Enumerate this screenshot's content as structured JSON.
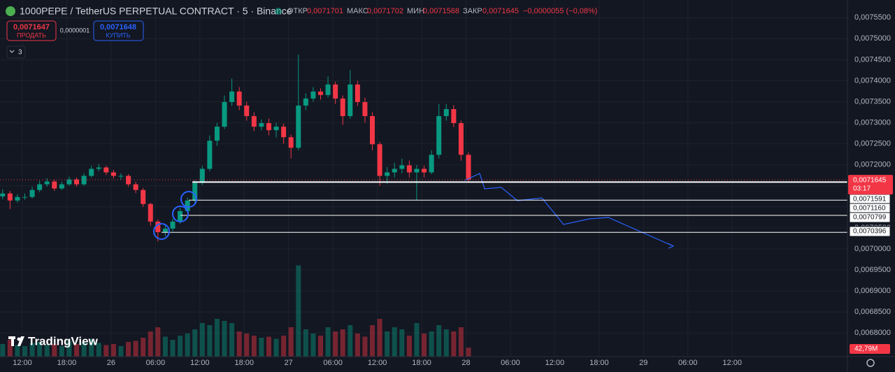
{
  "header": {
    "title": "1000PEPE / TetherUS PERPETUAL CONTRACT · 5 · Binance",
    "open_label": "ОТКР",
    "open": "0,0071701",
    "high_label": "МАКС",
    "high": "0,0071702",
    "low_label": "МИН",
    "low": "0,0071568",
    "close_label": "ЗАКР",
    "close": "0,0071645",
    "change": "−0,0000055 (−0,08%)",
    "sell_price": "0,0071647",
    "sell_label": "ПРОДАТЬ",
    "spread": "0,0000001",
    "buy_price": "0,0071648",
    "buy_label": "КУПИТЬ",
    "indicators_count": "3",
    "logo": "TradingView"
  },
  "chart_data": {
    "type": "candlestick",
    "ylim": [
      0.006744,
      0.007592
    ],
    "yticks": [
      {
        "value": 0.00755,
        "label": "0,0075500"
      },
      {
        "value": 0.0075,
        "label": "0,0075000"
      },
      {
        "value": 0.00745,
        "label": "0,0074500"
      },
      {
        "value": 0.0074,
        "label": "0,0074000"
      },
      {
        "value": 0.00735,
        "label": "0,0073500"
      },
      {
        "value": 0.0073,
        "label": "0,0073000"
      },
      {
        "value": 0.00725,
        "label": "0,0072500"
      },
      {
        "value": 0.0072,
        "label": "0,0072000"
      },
      {
        "value": 0.00715,
        "label": "0,0071500"
      },
      {
        "value": 0.0071,
        "label": "0,0071000"
      },
      {
        "value": 0.00705,
        "label": "0,0070500"
      },
      {
        "value": 0.007,
        "label": "0,0070000"
      },
      {
        "value": 0.00695,
        "label": "0,0069500"
      },
      {
        "value": 0.0069,
        "label": "0,0069000"
      },
      {
        "value": 0.00685,
        "label": "0,0068500"
      },
      {
        "value": 0.0068,
        "label": "0,0068000"
      }
    ],
    "x_axis_labels": [
      "12:00",
      "18:00",
      "26",
      "06:00",
      "12:00",
      "18:00",
      "27",
      "06:00",
      "12:00",
      "18:00",
      "28",
      "06:00",
      "12:00",
      "18:00",
      "29",
      "06:00",
      "12:00"
    ],
    "up_color": "#089981",
    "down_color": "#f23645",
    "open": [
      0.007125,
      0.0071319,
      0.0071152,
      0.0071236,
      0.0071236,
      0.0071403,
      0.0071537,
      0.0071604,
      0.0071437,
      0.0071537,
      0.0071654,
      0.0071537,
      0.0071738,
      0.0071905,
      0.0071938,
      0.0071821,
      0.0071738,
      0.0071738,
      0.0071537,
      0.0071403,
      0.0071069,
      0.0070651,
      0.00704,
      0.0070483,
      0.0070651,
      0.0070901,
      0.0071152,
      0.007157,
      0.0071905,
      0.0072574,
      0.0072908,
      0.0073493,
      0.0073744,
      0.007341,
      0.0073159,
      0.0072908,
      0.0072992,
      0.0072824,
      0.0072908,
      0.0072657,
      0.0072406,
      0.007341,
      0.0073577,
      0.0073744,
      0.0073661,
      0.0073911,
      0.0073577,
      0.0073159,
      0.0073911,
      0.0073493,
      0.0073159,
      0.007249,
      0.0071738,
      0.0071821,
      0.0071905,
      0.0071988,
      0.0071821,
      0.0071905,
      0.0071821,
      0.0072239,
      0.0073159,
      0.0073326,
      0.0072992,
      0.0072239
    ],
    "high": [
      0.007142,
      0.007138,
      0.00713,
      0.007132,
      0.007148,
      0.007162,
      0.007168,
      0.007165,
      0.00716,
      0.007172,
      0.00717,
      0.00718,
      0.007198,
      0.007202,
      0.007198,
      0.007188,
      0.00718,
      0.007178,
      0.00716,
      0.007145,
      0.00711,
      0.00707,
      0.007056,
      0.007072,
      0.007098,
      0.007122,
      0.007164,
      0.007198,
      0.00727,
      0.0073,
      0.007365,
      0.007405,
      0.007385,
      0.00735,
      0.007325,
      0.007308,
      0.00731,
      0.0073,
      0.007298,
      0.007272,
      0.007462,
      0.00737,
      0.007385,
      0.007382,
      0.00741,
      0.007398,
      0.007365,
      0.007425,
      0.0074,
      0.00736,
      0.007325,
      0.007255,
      0.007195,
      0.007205,
      0.007215,
      0.00721,
      0.0072,
      0.007198,
      0.007235,
      0.007345,
      0.007345,
      0.007342,
      0.007305,
      0.00723
    ],
    "low": [
      0.007118,
      0.007095,
      0.00711,
      0.007117,
      0.00712,
      0.007135,
      0.007148,
      0.007138,
      0.00714,
      0.00715,
      0.007148,
      0.00715,
      0.00717,
      0.007185,
      0.007176,
      0.007168,
      0.007165,
      0.007148,
      0.007133,
      0.0071,
      0.007055,
      0.007018,
      0.00703,
      0.007042,
      0.00706,
      0.007085,
      0.00711,
      0.007152,
      0.007185,
      0.007245,
      0.007285,
      0.00734,
      0.00733,
      0.007305,
      0.00728,
      0.007282,
      0.00727,
      0.007265,
      0.00725,
      0.007215,
      0.007235,
      0.00733,
      0.00735,
      0.007355,
      0.00736,
      0.007345,
      0.007295,
      0.00731,
      0.00734,
      0.0073,
      0.007235,
      0.00715,
      0.007155,
      0.00717,
      0.00718,
      0.00717,
      0.007115,
      0.00717,
      0.007178,
      0.007215,
      0.007305,
      0.00729,
      0.00721,
      0.00716
    ],
    "close": [
      0.0071319,
      0.0071152,
      0.0071236,
      0.0071236,
      0.0071403,
      0.0071537,
      0.0071604,
      0.0071437,
      0.0071537,
      0.0071654,
      0.0071537,
      0.0071738,
      0.0071905,
      0.0071938,
      0.0071821,
      0.0071738,
      0.0071738,
      0.0071537,
      0.0071403,
      0.0071069,
      0.0070651,
      0.00704,
      0.0070483,
      0.0070651,
      0.0070901,
      0.0071152,
      0.007157,
      0.0071905,
      0.0072574,
      0.0072908,
      0.0073493,
      0.0073744,
      0.007341,
      0.0073159,
      0.0072908,
      0.0072992,
      0.0072824,
      0.0072908,
      0.0072657,
      0.0072406,
      0.007341,
      0.0073577,
      0.0073744,
      0.0073661,
      0.0073911,
      0.0073577,
      0.0073159,
      0.0073911,
      0.0073493,
      0.0073159,
      0.007249,
      0.0071738,
      0.0071821,
      0.0071905,
      0.0071988,
      0.0071821,
      0.0071905,
      0.0071821,
      0.0072239,
      0.0073159,
      0.0073326,
      0.0072992,
      0.0072239,
      0.0071645
    ],
    "volume": {
      "ylim": [
        0,
        500
      ],
      "values": [
        60,
        80,
        55,
        50,
        65,
        70,
        55,
        60,
        50,
        75,
        60,
        70,
        85,
        65,
        55,
        60,
        50,
        70,
        75,
        90,
        120,
        140,
        95,
        80,
        100,
        110,
        130,
        160,
        150,
        180,
        170,
        160,
        120,
        110,
        100,
        90,
        95,
        85,
        100,
        140,
        435,
        130,
        110,
        100,
        140,
        120,
        130,
        150,
        110,
        95,
        150,
        180,
        120,
        140,
        130,
        100,
        160,
        110,
        120,
        150,
        130,
        120,
        140,
        42.79
      ],
      "last_label": "42,79M"
    },
    "last_price": {
      "value": 0.0071645,
      "label": "0,0071645"
    },
    "countdown": "03:17",
    "levels": [
      {
        "value": 0.0071591,
        "label": "0,0071591"
      },
      {
        "value": 0.007116,
        "label": "0,0071160"
      },
      {
        "value": 0.0070799,
        "label": "0,0070799"
      },
      {
        "value": 0.0070396,
        "label": "0,0070396"
      }
    ]
  }
}
